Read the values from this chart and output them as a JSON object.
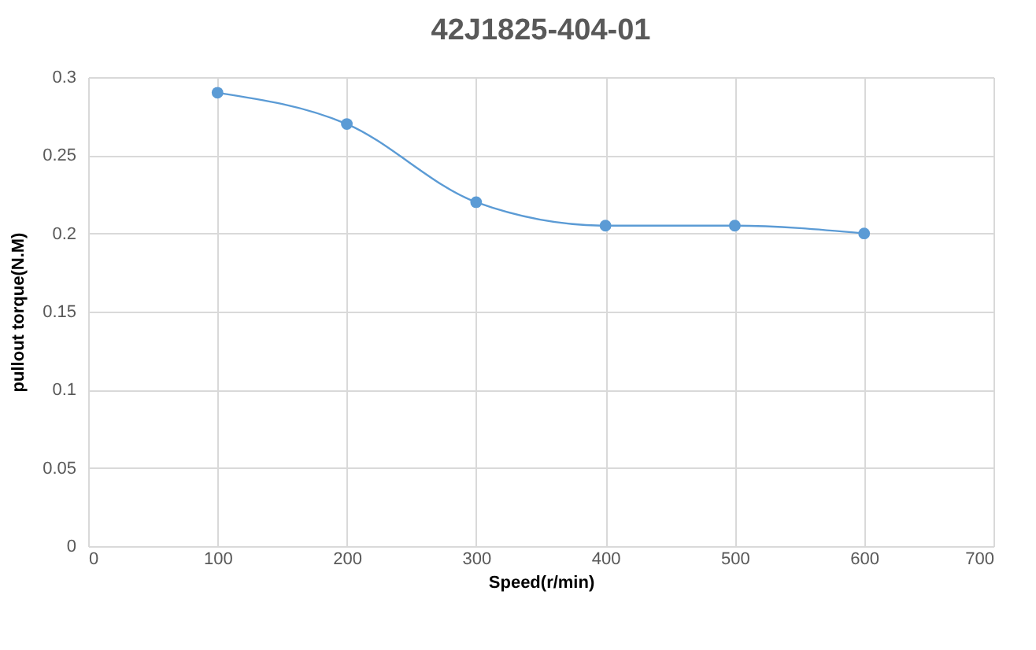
{
  "chart_data": {
    "type": "line",
    "title": "42J1825-404-01",
    "xlabel": "Speed(r/min)",
    "ylabel": "pullout torque(N.M)",
    "x": [
      100,
      200,
      300,
      400,
      500,
      600
    ],
    "series": [
      {
        "color": "#5b9bd5",
        "values": [
          0.29,
          0.27,
          0.22,
          0.205,
          0.205,
          0.2
        ]
      }
    ],
    "xlim": [
      0,
      700
    ],
    "xticks": [
      0,
      100,
      200,
      300,
      400,
      500,
      600,
      700
    ],
    "ylim": [
      0,
      0.3
    ],
    "yticks": [
      0,
      0.05,
      0.1,
      0.15,
      0.2,
      0.25,
      0.3
    ],
    "grid": true,
    "marker": "circle",
    "line_style": "solid"
  }
}
